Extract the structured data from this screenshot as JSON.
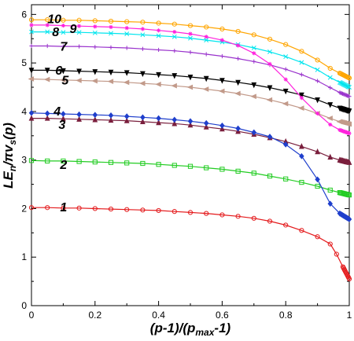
{
  "chart_data": {
    "type": "line",
    "title": "",
    "xlabel": "(p-1)/(p_max-1)",
    "ylabel": "LE_n/πv_s(p)",
    "xlim": [
      0,
      1
    ],
    "ylim": [
      0,
      6.2
    ],
    "x_ticks": [
      "0",
      "0.2",
      "0.4",
      "0.6",
      "0.8",
      "1"
    ],
    "y_ticks": [
      "0",
      "1",
      "2",
      "3",
      "4",
      "5",
      "6"
    ],
    "grid": false,
    "legend": "none",
    "series": [
      {
        "label": "1",
        "color": "#e41a1c",
        "marker": "circle",
        "x": [
          0,
          0.05,
          0.1,
          0.15,
          0.2,
          0.25,
          0.3,
          0.35,
          0.4,
          0.45,
          0.5,
          0.55,
          0.6,
          0.65,
          0.7,
          0.75,
          0.8,
          0.85,
          0.9,
          0.94,
          0.96,
          0.98,
          1.0
        ],
        "y": [
          2.02,
          2.02,
          2.01,
          2.01,
          2.0,
          1.99,
          1.98,
          1.97,
          1.96,
          1.94,
          1.92,
          1.9,
          1.87,
          1.84,
          1.8,
          1.74,
          1.66,
          1.55,
          1.42,
          1.27,
          1.06,
          0.8,
          0.55
        ]
      },
      {
        "label": "2",
        "color": "#22cc22",
        "marker": "square",
        "x": [
          0,
          0.05,
          0.1,
          0.15,
          0.2,
          0.25,
          0.3,
          0.35,
          0.4,
          0.45,
          0.5,
          0.55,
          0.6,
          0.65,
          0.7,
          0.75,
          0.8,
          0.85,
          0.9,
          0.94,
          0.97,
          1.0
        ],
        "y": [
          2.99,
          2.98,
          2.98,
          2.97,
          2.96,
          2.95,
          2.94,
          2.93,
          2.91,
          2.89,
          2.87,
          2.84,
          2.81,
          2.77,
          2.73,
          2.67,
          2.61,
          2.54,
          2.46,
          2.38,
          2.33,
          2.28
        ]
      },
      {
        "label": "3",
        "color": "#7a1f3d",
        "marker": "triangle",
        "x": [
          0,
          0.05,
          0.1,
          0.15,
          0.2,
          0.25,
          0.3,
          0.35,
          0.4,
          0.45,
          0.5,
          0.55,
          0.6,
          0.65,
          0.7,
          0.75,
          0.8,
          0.85,
          0.9,
          0.94,
          0.97,
          1.0
        ],
        "y": [
          3.86,
          3.86,
          3.85,
          3.84,
          3.83,
          3.82,
          3.81,
          3.79,
          3.77,
          3.75,
          3.72,
          3.68,
          3.64,
          3.59,
          3.53,
          3.46,
          3.38,
          3.28,
          3.17,
          3.06,
          3.0,
          2.95
        ]
      },
      {
        "label": "4",
        "color": "#1f3fcc",
        "marker": "diamond",
        "x": [
          0,
          0.05,
          0.1,
          0.15,
          0.2,
          0.25,
          0.3,
          0.35,
          0.4,
          0.45,
          0.5,
          0.55,
          0.6,
          0.65,
          0.7,
          0.75,
          0.8,
          0.85,
          0.9,
          0.94,
          0.97,
          1.0
        ],
        "y": [
          3.97,
          3.96,
          3.95,
          3.94,
          3.93,
          3.92,
          3.9,
          3.88,
          3.86,
          3.83,
          3.8,
          3.76,
          3.71,
          3.65,
          3.57,
          3.48,
          3.32,
          3.08,
          2.6,
          2.1,
          1.9,
          1.78
        ]
      },
      {
        "label": "5",
        "color": "#c29a8a",
        "marker": "triangle-left",
        "x": [
          0,
          0.05,
          0.1,
          0.15,
          0.2,
          0.25,
          0.3,
          0.35,
          0.4,
          0.45,
          0.5,
          0.55,
          0.6,
          0.65,
          0.7,
          0.75,
          0.8,
          0.85,
          0.9,
          0.94,
          0.97,
          1.0
        ],
        "y": [
          4.67,
          4.66,
          4.65,
          4.64,
          4.63,
          4.62,
          4.6,
          4.58,
          4.56,
          4.53,
          4.5,
          4.46,
          4.42,
          4.37,
          4.31,
          4.24,
          4.16,
          4.07,
          3.96,
          3.86,
          3.79,
          3.74
        ]
      },
      {
        "label": "6",
        "color": "#000000",
        "marker": "triangle-down",
        "x": [
          0,
          0.05,
          0.1,
          0.15,
          0.2,
          0.25,
          0.3,
          0.35,
          0.4,
          0.45,
          0.5,
          0.55,
          0.6,
          0.65,
          0.7,
          0.75,
          0.8,
          0.85,
          0.9,
          0.94,
          0.97,
          1.0
        ],
        "y": [
          4.85,
          4.85,
          4.84,
          4.83,
          4.82,
          4.81,
          4.8,
          4.78,
          4.76,
          4.74,
          4.71,
          4.68,
          4.64,
          4.6,
          4.55,
          4.49,
          4.42,
          4.34,
          4.24,
          4.14,
          4.07,
          4.01
        ]
      },
      {
        "label": "7",
        "color": "#9932cc",
        "marker": "plus",
        "x": [
          0,
          0.05,
          0.1,
          0.15,
          0.2,
          0.25,
          0.3,
          0.35,
          0.4,
          0.45,
          0.5,
          0.55,
          0.6,
          0.65,
          0.7,
          0.75,
          0.8,
          0.85,
          0.9,
          0.94,
          0.97,
          1.0
        ],
        "y": [
          5.35,
          5.35,
          5.34,
          5.34,
          5.33,
          5.32,
          5.31,
          5.29,
          5.27,
          5.25,
          5.22,
          5.18,
          5.14,
          5.09,
          5.03,
          4.96,
          4.87,
          4.76,
          4.63,
          4.49,
          4.39,
          4.31
        ]
      },
      {
        "label": "8",
        "color": "#00e5ee",
        "marker": "x",
        "x": [
          0,
          0.05,
          0.1,
          0.15,
          0.2,
          0.25,
          0.3,
          0.35,
          0.4,
          0.45,
          0.5,
          0.55,
          0.6,
          0.65,
          0.7,
          0.75,
          0.8,
          0.85,
          0.9,
          0.94,
          0.97,
          1.0
        ],
        "y": [
          5.64,
          5.64,
          5.63,
          5.63,
          5.62,
          5.61,
          5.6,
          5.58,
          5.56,
          5.54,
          5.51,
          5.47,
          5.43,
          5.38,
          5.31,
          5.23,
          5.13,
          5.01,
          4.86,
          4.7,
          4.6,
          4.5
        ]
      },
      {
        "label": "9",
        "color": "#ff22dd",
        "marker": "star",
        "x": [
          0,
          0.05,
          0.1,
          0.15,
          0.2,
          0.25,
          0.3,
          0.35,
          0.4,
          0.45,
          0.5,
          0.55,
          0.6,
          0.65,
          0.7,
          0.75,
          0.8,
          0.85,
          0.9,
          0.94,
          0.97,
          1.0
        ],
        "y": [
          5.78,
          5.78,
          5.77,
          5.76,
          5.75,
          5.74,
          5.72,
          5.7,
          5.67,
          5.64,
          5.6,
          5.54,
          5.47,
          5.36,
          5.2,
          4.98,
          4.66,
          4.28,
          3.96,
          3.73,
          3.62,
          3.55
        ]
      },
      {
        "label": "10",
        "color": "#ffa500",
        "marker": "circle",
        "x": [
          0,
          0.05,
          0.1,
          0.15,
          0.2,
          0.25,
          0.3,
          0.35,
          0.4,
          0.45,
          0.5,
          0.55,
          0.6,
          0.65,
          0.7,
          0.75,
          0.8,
          0.85,
          0.9,
          0.94,
          0.97,
          1.0
        ],
        "y": [
          5.89,
          5.89,
          5.88,
          5.88,
          5.87,
          5.86,
          5.85,
          5.84,
          5.82,
          5.8,
          5.77,
          5.74,
          5.7,
          5.65,
          5.58,
          5.49,
          5.38,
          5.24,
          5.06,
          4.89,
          4.79,
          4.69
        ]
      }
    ],
    "labels_text": {
      "y_main": "LE",
      "y_sub": "n",
      "y_rest": "/πv",
      "y_sub2": "s",
      "y_tail": "(p)",
      "x_main": "(p-1)/(p",
      "x_sub": "max",
      "x_tail": "-1)"
    },
    "series_label_positions": [
      {
        "label": "1",
        "x": 0.09,
        "y": 2.02
      },
      {
        "label": "2",
        "x": 0.09,
        "y": 2.9
      },
      {
        "label": "3",
        "x": 0.085,
        "y": 3.72
      },
      {
        "label": "4",
        "x": 0.07,
        "y": 4.0
      },
      {
        "label": "5",
        "x": 0.095,
        "y": 4.64
      },
      {
        "label": "6",
        "x": 0.075,
        "y": 4.84
      },
      {
        "label": "7",
        "x": 0.09,
        "y": 5.33
      },
      {
        "label": "8",
        "x": 0.065,
        "y": 5.63
      },
      {
        "label": "9",
        "x": 0.12,
        "y": 5.7
      },
      {
        "label": "10",
        "x": 0.05,
        "y": 5.9
      }
    ]
  }
}
